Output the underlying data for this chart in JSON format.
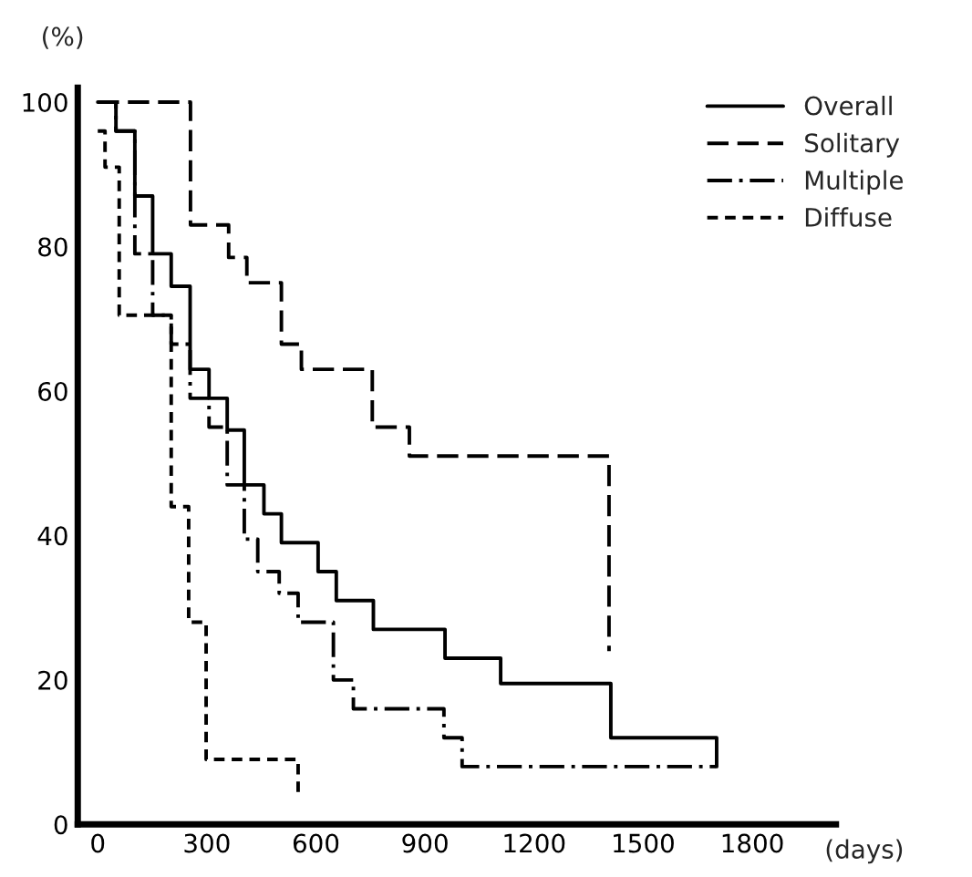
{
  "chart_data": {
    "type": "step",
    "xlabel": "(days)",
    "ylabel": "(%)",
    "xlim": [
      -55,
      2030
    ],
    "ylim": [
      0,
      102
    ],
    "xticks": [
      0,
      300,
      600,
      900,
      1200,
      1500,
      1800
    ],
    "yticks": [
      0,
      20,
      40,
      60,
      80,
      100
    ],
    "grid": false,
    "legend": "top right",
    "marker": "none",
    "series": [
      {
        "name": "Overall",
        "color": "#000000",
        "line_style": "solid",
        "x": [
          0,
          50,
          102,
          151,
          202,
          254,
          306,
          356,
          403,
          457,
          505,
          606,
          656,
          758,
          955,
          1108,
          1411,
          1702
        ],
        "values": [
          100,
          96,
          87,
          79,
          74.5,
          63,
          59,
          54.6,
          47,
          43,
          39,
          35,
          31,
          27,
          23,
          19.5,
          12,
          8
        ]
      },
      {
        "name": "Solitary",
        "color": "#000000",
        "line_style": "dashed",
        "x": [
          0,
          255,
          360,
          410,
          505,
          560,
          755,
          857,
          1406
        ],
        "values": [
          100,
          83,
          78.5,
          75,
          66.5,
          63,
          55,
          51,
          24
        ]
      },
      {
        "name": "Multiple",
        "color": "#000000",
        "line_style": "dashdot",
        "x": [
          0,
          50,
          102,
          151,
          202,
          254,
          306,
          356,
          403,
          440,
          499,
          551,
          648,
          703,
          952,
          1002,
          1700
        ],
        "values": [
          100,
          96,
          79,
          70.5,
          66.5,
          59,
          55,
          47,
          39.5,
          35,
          32,
          28,
          20,
          16,
          12,
          8,
          8
        ]
      },
      {
        "name": "Diffuse",
        "color": "#000000",
        "line_style": "dotted",
        "x": [
          0,
          20,
          59,
          202,
          250,
          298,
          551
        ],
        "values": [
          96,
          91,
          70.5,
          44,
          28,
          9,
          4.5
        ]
      }
    ]
  }
}
